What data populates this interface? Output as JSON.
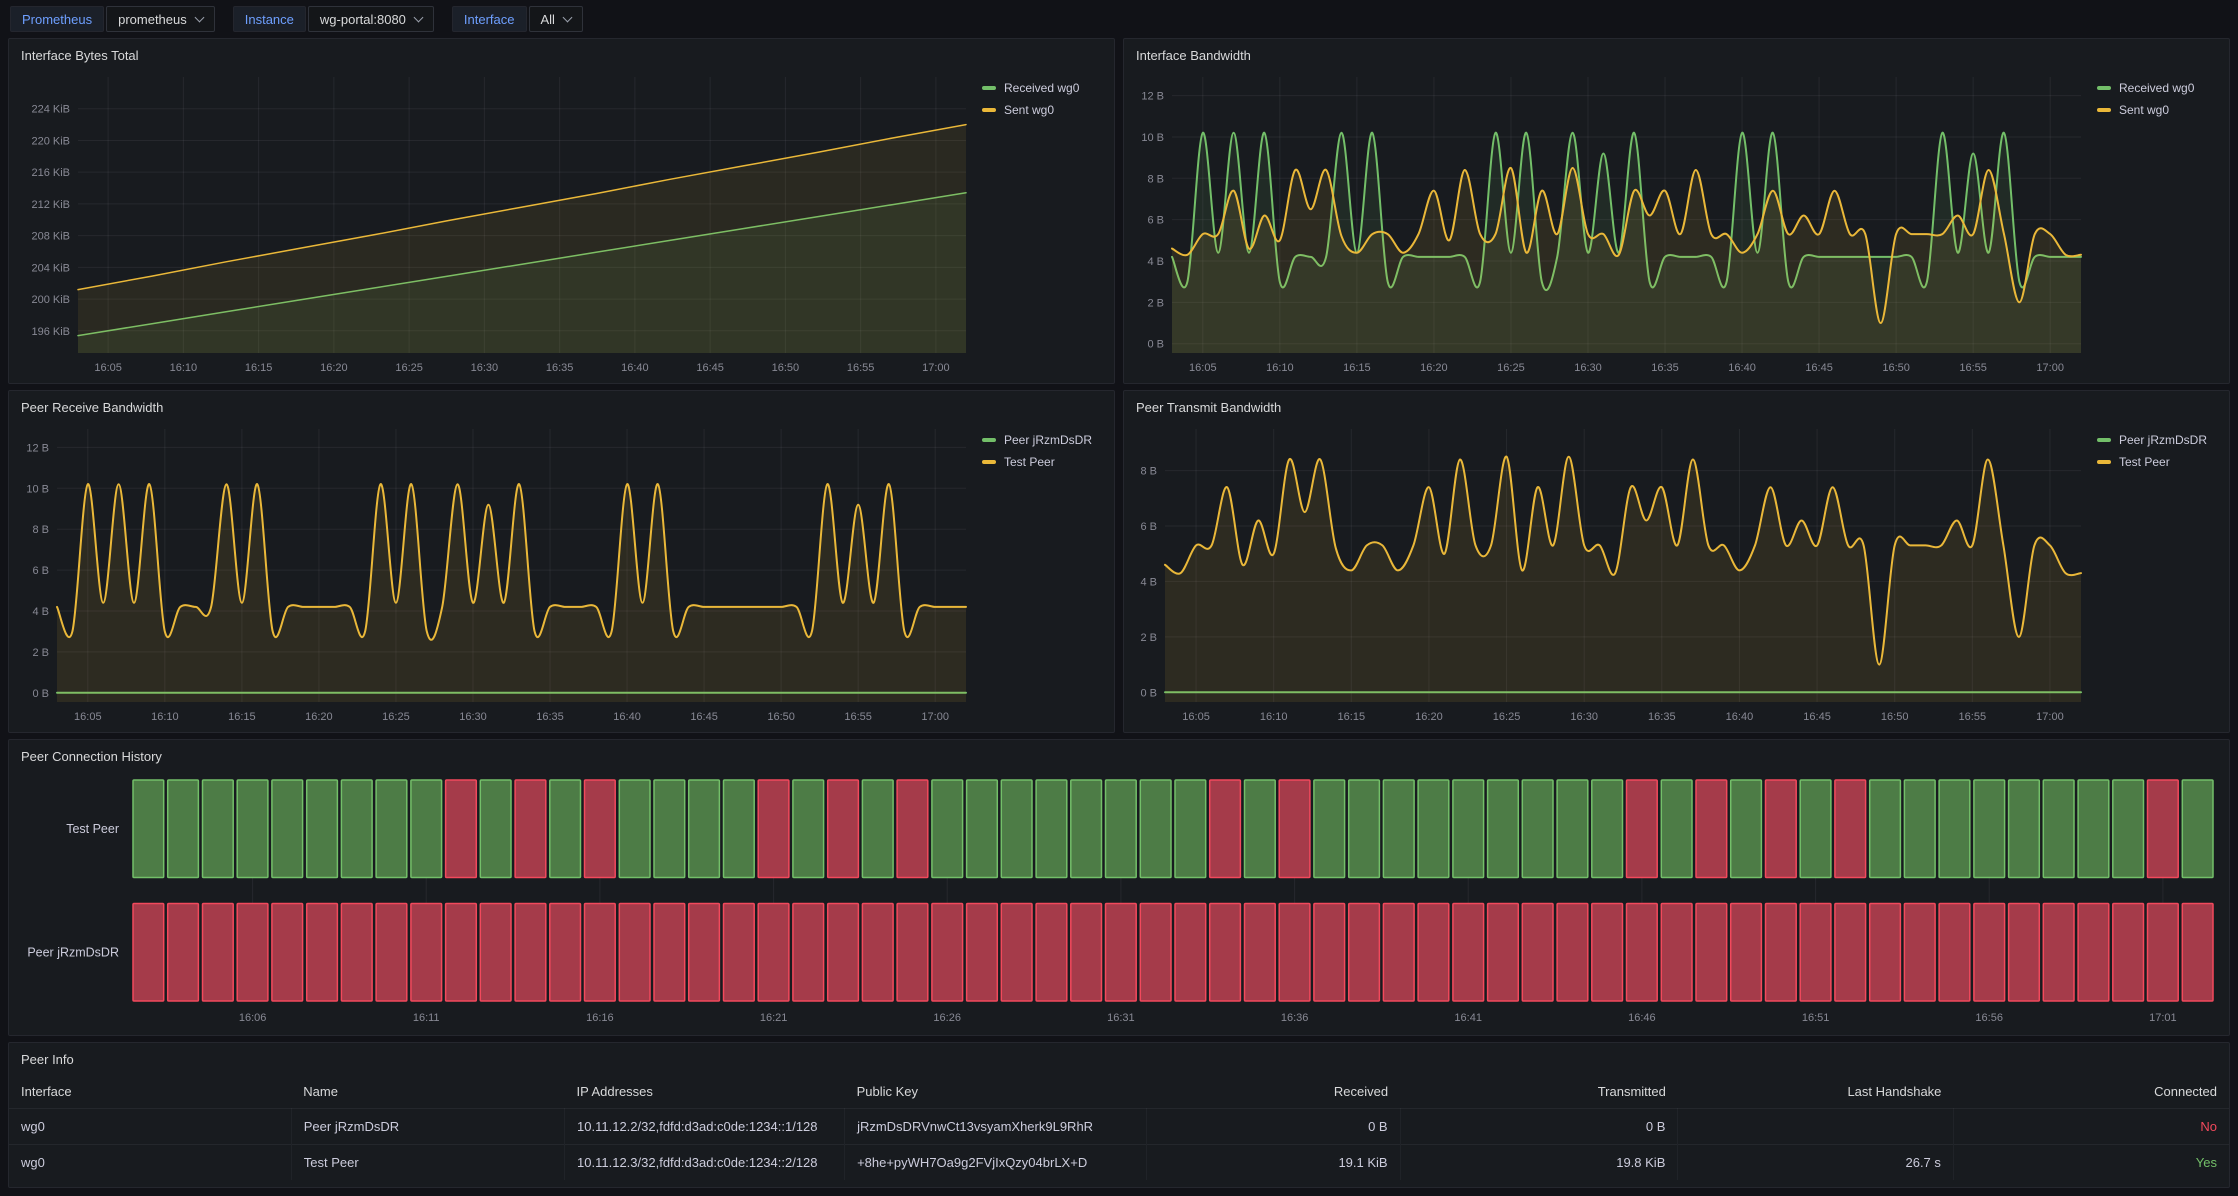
{
  "toolbar": {
    "variables": [
      {
        "label": "Prometheus",
        "value": "prometheus"
      },
      {
        "label": "Instance",
        "value": "wg-portal:8080"
      },
      {
        "label": "Interface",
        "value": "All"
      }
    ]
  },
  "colors": {
    "green": "#73BF69",
    "yellow": "#EAB839",
    "red": "#F2495C",
    "link_blue": "#6e9fff"
  },
  "chart_data": [
    {
      "type": "line",
      "title": "Interface Bytes Total",
      "legend_position": "right",
      "grid": true,
      "x_start_min": 3,
      "x_end_min": 62,
      "ylim": [
        193.2,
        228
      ],
      "yticks": [
        {
          "v": 196,
          "label": "196 KiB"
        },
        {
          "v": 200,
          "label": "200 KiB"
        },
        {
          "v": 204,
          "label": "204 KiB"
        },
        {
          "v": 208,
          "label": "208 KiB"
        },
        {
          "v": 212,
          "label": "212 KiB"
        },
        {
          "v": 216,
          "label": "216 KiB"
        },
        {
          "v": 220,
          "label": "220 KiB"
        },
        {
          "v": 224,
          "label": "224 KiB"
        }
      ],
      "xticks": [
        {
          "v": 5,
          "label": "16:05"
        },
        {
          "v": 10,
          "label": "16:10"
        },
        {
          "v": 15,
          "label": "16:15"
        },
        {
          "v": 20,
          "label": "16:20"
        },
        {
          "v": 25,
          "label": "16:25"
        },
        {
          "v": 30,
          "label": "16:30"
        },
        {
          "v": 35,
          "label": "16:35"
        },
        {
          "v": 40,
          "label": "16:40"
        },
        {
          "v": 45,
          "label": "16:45"
        },
        {
          "v": 50,
          "label": "16:50"
        },
        {
          "v": 55,
          "label": "16:55"
        },
        {
          "v": 60,
          "label": "17:00"
        }
      ],
      "series": [
        {
          "name": "Received wg0",
          "color": "#73BF69",
          "width": 1.5,
          "fill_opacity": 0.09,
          "smooth": false,
          "values": [
            195.4,
            196.9,
            198.4,
            199.9,
            201.4,
            202.9,
            204.4,
            205.9,
            207.4,
            208.9,
            210.4,
            211.9,
            213.4
          ]
        },
        {
          "name": "Sent wg0",
          "color": "#EAB839",
          "width": 1.5,
          "fill_opacity": 0.09,
          "smooth": false,
          "values": [
            201.2,
            202.9,
            204.7,
            206.4,
            208.1,
            209.9,
            211.6,
            213.3,
            215.1,
            216.8,
            218.5,
            220.3,
            222
          ]
        }
      ]
    },
    {
      "type": "line",
      "title": "Interface Bandwidth",
      "legend_position": "right",
      "grid": true,
      "x_start_min": 3,
      "x_end_min": 62,
      "ylim": [
        -0.45,
        12.9
      ],
      "yticks": [
        {
          "v": 0,
          "label": "0 B"
        },
        {
          "v": 2,
          "label": "2 B"
        },
        {
          "v": 4,
          "label": "4 B"
        },
        {
          "v": 6,
          "label": "6 B"
        },
        {
          "v": 8,
          "label": "8 B"
        },
        {
          "v": 10,
          "label": "10 B"
        },
        {
          "v": 12,
          "label": "12 B"
        }
      ],
      "xticks": [
        {
          "v": 5,
          "label": "16:05"
        },
        {
          "v": 10,
          "label": "16:10"
        },
        {
          "v": 15,
          "label": "16:15"
        },
        {
          "v": 20,
          "label": "16:20"
        },
        {
          "v": 25,
          "label": "16:25"
        },
        {
          "v": 30,
          "label": "16:30"
        },
        {
          "v": 35,
          "label": "16:35"
        },
        {
          "v": 40,
          "label": "16:40"
        },
        {
          "v": 45,
          "label": "16:45"
        },
        {
          "v": 50,
          "label": "16:50"
        },
        {
          "v": 55,
          "label": "16:55"
        },
        {
          "v": 60,
          "label": "17:00"
        }
      ],
      "series": [
        {
          "name": "Received wg0",
          "color": "#73BF69",
          "width": 2,
          "fill_opacity": 0.1,
          "smooth": true,
          "values": [
            4.2,
            3.0,
            10.2,
            4.4,
            10.2,
            4.4,
            10.2,
            3.0,
            4.2,
            4.2,
            4.2,
            10.2,
            4.4,
            10.2,
            3.0,
            4.2,
            4.2,
            4.2,
            4.2,
            4.2,
            3.0,
            10.2,
            4.4,
            10.2,
            3.0,
            4.2,
            10.2,
            4.4,
            9.2,
            4.4,
            10.2,
            3.0,
            4.2,
            4.2,
            4.2,
            4.2,
            3.0,
            10.2,
            4.4,
            10.2,
            3.0,
            4.2,
            4.2,
            4.2,
            4.2,
            4.2,
            4.2,
            4.2,
            4.2,
            3.0,
            10.2,
            4.4,
            9.2,
            4.4,
            10.2,
            3.0,
            4.2,
            4.2,
            4.2,
            4.2
          ]
        },
        {
          "name": "Sent wg0",
          "color": "#EAB839",
          "width": 2,
          "fill_opacity": 0.1,
          "smooth": true,
          "values": [
            4.6,
            4.3,
            5.3,
            5.3,
            7.4,
            4.6,
            6.2,
            5.0,
            8.4,
            6.5,
            8.4,
            5.2,
            4.4,
            5.3,
            5.3,
            4.4,
            5.3,
            7.4,
            5.0,
            8.4,
            5.3,
            5.3,
            8.5,
            4.4,
            7.4,
            5.3,
            8.5,
            5.3,
            5.3,
            4.3,
            7.4,
            6.2,
            7.4,
            5.3,
            8.4,
            5.3,
            5.3,
            4.4,
            5.3,
            7.4,
            5.3,
            6.2,
            5.3,
            7.4,
            5.3,
            5.3,
            1.0,
            5.3,
            5.3,
            5.3,
            5.3,
            6.2,
            5.3,
            8.4,
            5.3,
            2.0,
            5.3,
            5.3,
            4.3,
            4.3
          ]
        }
      ]
    },
    {
      "type": "line",
      "title": "Peer Receive Bandwidth",
      "legend_position": "right",
      "grid": true,
      "x_start_min": 3,
      "x_end_min": 62,
      "ylim": [
        -0.45,
        12.9
      ],
      "yticks": [
        {
          "v": 0,
          "label": "0 B"
        },
        {
          "v": 2,
          "label": "2 B"
        },
        {
          "v": 4,
          "label": "4 B"
        },
        {
          "v": 6,
          "label": "6 B"
        },
        {
          "v": 8,
          "label": "8 B"
        },
        {
          "v": 10,
          "label": "10 B"
        },
        {
          "v": 12,
          "label": "12 B"
        }
      ],
      "xticks": [
        {
          "v": 5,
          "label": "16:05"
        },
        {
          "v": 10,
          "label": "16:10"
        },
        {
          "v": 15,
          "label": "16:15"
        },
        {
          "v": 20,
          "label": "16:20"
        },
        {
          "v": 25,
          "label": "16:25"
        },
        {
          "v": 30,
          "label": "16:30"
        },
        {
          "v": 35,
          "label": "16:35"
        },
        {
          "v": 40,
          "label": "16:40"
        },
        {
          "v": 45,
          "label": "16:45"
        },
        {
          "v": 50,
          "label": "16:50"
        },
        {
          "v": 55,
          "label": "16:55"
        },
        {
          "v": 60,
          "label": "17:00"
        }
      ],
      "series": [
        {
          "name": "Peer jRzmDsDR",
          "color": "#73BF69",
          "width": 2,
          "fill_opacity": 0,
          "smooth": false,
          "values": [
            0,
            0
          ]
        },
        {
          "name": "Test Peer",
          "color": "#EAB839",
          "width": 2,
          "fill_opacity": 0.1,
          "smooth": true,
          "values": [
            4.2,
            3.0,
            10.2,
            4.4,
            10.2,
            4.4,
            10.2,
            3.0,
            4.2,
            4.2,
            4.2,
            10.2,
            4.4,
            10.2,
            3.0,
            4.2,
            4.2,
            4.2,
            4.2,
            4.2,
            3.0,
            10.2,
            4.4,
            10.2,
            3.0,
            4.2,
            10.2,
            4.4,
            9.2,
            4.4,
            10.2,
            3.0,
            4.2,
            4.2,
            4.2,
            4.2,
            3.0,
            10.2,
            4.4,
            10.2,
            3.0,
            4.2,
            4.2,
            4.2,
            4.2,
            4.2,
            4.2,
            4.2,
            4.2,
            3.0,
            10.2,
            4.4,
            9.2,
            4.4,
            10.2,
            3.0,
            4.2,
            4.2,
            4.2,
            4.2
          ]
        }
      ]
    },
    {
      "type": "line",
      "title": "Peer Transmit Bandwidth",
      "legend_position": "right",
      "grid": true,
      "x_start_min": 3,
      "x_end_min": 62,
      "ylim": [
        -0.35,
        9.5
      ],
      "yticks": [
        {
          "v": 0,
          "label": "0 B"
        },
        {
          "v": 2,
          "label": "2 B"
        },
        {
          "v": 4,
          "label": "4 B"
        },
        {
          "v": 6,
          "label": "6 B"
        },
        {
          "v": 8,
          "label": "8 B"
        }
      ],
      "xticks": [
        {
          "v": 5,
          "label": "16:05"
        },
        {
          "v": 10,
          "label": "16:10"
        },
        {
          "v": 15,
          "label": "16:15"
        },
        {
          "v": 20,
          "label": "16:20"
        },
        {
          "v": 25,
          "label": "16:25"
        },
        {
          "v": 30,
          "label": "16:30"
        },
        {
          "v": 35,
          "label": "16:35"
        },
        {
          "v": 40,
          "label": "16:40"
        },
        {
          "v": 45,
          "label": "16:45"
        },
        {
          "v": 50,
          "label": "16:50"
        },
        {
          "v": 55,
          "label": "16:55"
        },
        {
          "v": 60,
          "label": "17:00"
        }
      ],
      "series": [
        {
          "name": "Peer jRzmDsDR",
          "color": "#73BF69",
          "width": 2,
          "fill_opacity": 0,
          "smooth": false,
          "values": [
            0,
            0
          ]
        },
        {
          "name": "Test Peer",
          "color": "#EAB839",
          "width": 2,
          "fill_opacity": 0.1,
          "smooth": true,
          "values": [
            4.6,
            4.3,
            5.3,
            5.3,
            7.4,
            4.6,
            6.2,
            5.0,
            8.4,
            6.5,
            8.4,
            5.2,
            4.4,
            5.3,
            5.3,
            4.4,
            5.3,
            7.4,
            5.0,
            8.4,
            5.3,
            5.3,
            8.5,
            4.4,
            7.4,
            5.3,
            8.5,
            5.3,
            5.3,
            4.3,
            7.4,
            6.2,
            7.4,
            5.3,
            8.4,
            5.3,
            5.3,
            4.4,
            5.3,
            7.4,
            5.3,
            6.2,
            5.3,
            7.4,
            5.3,
            5.3,
            1.0,
            5.3,
            5.3,
            5.3,
            5.3,
            6.2,
            5.3,
            8.4,
            5.3,
            2.0,
            5.3,
            5.3,
            4.3,
            4.3
          ]
        }
      ]
    },
    {
      "type": "state-timeline",
      "title": "Peer Connection History",
      "grid": true,
      "states": {
        "G": {
          "fill": "#4d7c46",
          "border": "#73BF69"
        },
        "R": {
          "fill": "#a53b4a",
          "border": "#F2495C"
        }
      },
      "rows": [
        {
          "label": "Test Peer",
          "pattern": "GGGGGGGGGRGRGRGGGGRGRGRGGGGGGGGRGRGGGGGGGGGRGRGRGRGGGGGGGGRG"
        },
        {
          "label": "Peer jRzmDsDR",
          "pattern": "RRRRRRRRRRRRRRRRRRRRRRRRRRRRRRRRRRRRRRRRRRRRRRRRRRRRRRRRRRRR"
        }
      ],
      "xticks": [
        {
          "slot": 3,
          "label": "16:06"
        },
        {
          "slot": 8,
          "label": "16:11"
        },
        {
          "slot": 13,
          "label": "16:16"
        },
        {
          "slot": 18,
          "label": "16:21"
        },
        {
          "slot": 23,
          "label": "16:26"
        },
        {
          "slot": 28,
          "label": "16:31"
        },
        {
          "slot": 33,
          "label": "16:36"
        },
        {
          "slot": 38,
          "label": "16:41"
        },
        {
          "slot": 43,
          "label": "16:46"
        },
        {
          "slot": 48,
          "label": "16:51"
        },
        {
          "slot": 53,
          "label": "16:56"
        },
        {
          "slot": 58,
          "label": "17:01"
        }
      ]
    }
  ],
  "table": {
    "title": "Peer Info",
    "columns": [
      {
        "label": "Interface",
        "align": "left"
      },
      {
        "label": "Name",
        "align": "left"
      },
      {
        "label": "IP Addresses",
        "align": "left"
      },
      {
        "label": "Public Key",
        "align": "left"
      },
      {
        "label": "Received",
        "align": "right"
      },
      {
        "label": "Transmitted",
        "align": "right"
      },
      {
        "label": "Last Handshake",
        "align": "right"
      },
      {
        "label": "Connected",
        "align": "right"
      }
    ],
    "rows": [
      [
        "wg0",
        "Peer jRzmDsDR",
        "10.11.12.2/32,fdfd:d3ad:c0de:1234::1/128",
        "jRzmDsDRVnwCt13vsyamXherk9L9RhR",
        "0 B",
        "0 B",
        "",
        "No"
      ],
      [
        "wg0",
        "Test Peer",
        "10.11.12.3/32,fdfd:d3ad:c0de:1234::2/128",
        "+8he+pyWH7Oa9g2FVjIxQzy04brLX+D",
        "19.1 KiB",
        "19.8 KiB",
        "26.7 s",
        "Yes"
      ]
    ],
    "connected_colors": {
      "Yes": "#73BF69",
      "No": "#F2495C"
    }
  }
}
